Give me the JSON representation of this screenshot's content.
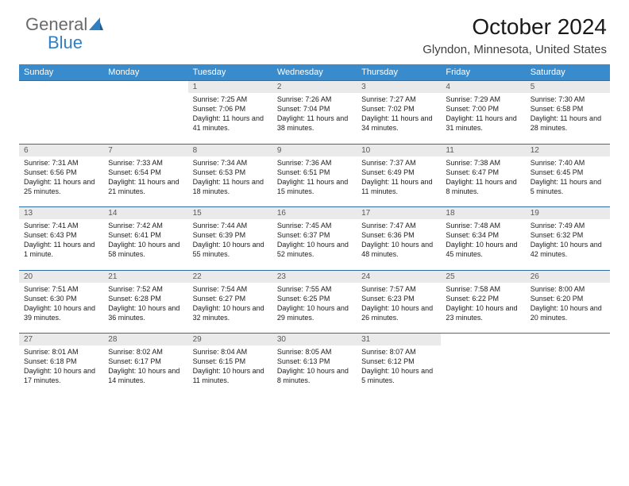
{
  "logo": {
    "text1": "General",
    "text2": "Blue"
  },
  "header": {
    "title": "October 2024",
    "location": "Glyndon, Minnesota, United States"
  },
  "colors": {
    "header_bg": "#3a8bcb",
    "daynum_bg": "#eaeaea",
    "sep": "#2f6ea8",
    "logo_gray": "#6a6a6a",
    "logo_blue": "#2f7fc2"
  },
  "day_names": [
    "Sunday",
    "Monday",
    "Tuesday",
    "Wednesday",
    "Thursday",
    "Friday",
    "Saturday"
  ],
  "weeks": [
    [
      null,
      null,
      {
        "n": "1",
        "sr": "Sunrise: 7:25 AM",
        "ss": "Sunset: 7:06 PM",
        "dl": "Daylight: 11 hours and 41 minutes."
      },
      {
        "n": "2",
        "sr": "Sunrise: 7:26 AM",
        "ss": "Sunset: 7:04 PM",
        "dl": "Daylight: 11 hours and 38 minutes."
      },
      {
        "n": "3",
        "sr": "Sunrise: 7:27 AM",
        "ss": "Sunset: 7:02 PM",
        "dl": "Daylight: 11 hours and 34 minutes."
      },
      {
        "n": "4",
        "sr": "Sunrise: 7:29 AM",
        "ss": "Sunset: 7:00 PM",
        "dl": "Daylight: 11 hours and 31 minutes."
      },
      {
        "n": "5",
        "sr": "Sunrise: 7:30 AM",
        "ss": "Sunset: 6:58 PM",
        "dl": "Daylight: 11 hours and 28 minutes."
      }
    ],
    [
      {
        "n": "6",
        "sr": "Sunrise: 7:31 AM",
        "ss": "Sunset: 6:56 PM",
        "dl": "Daylight: 11 hours and 25 minutes."
      },
      {
        "n": "7",
        "sr": "Sunrise: 7:33 AM",
        "ss": "Sunset: 6:54 PM",
        "dl": "Daylight: 11 hours and 21 minutes."
      },
      {
        "n": "8",
        "sr": "Sunrise: 7:34 AM",
        "ss": "Sunset: 6:53 PM",
        "dl": "Daylight: 11 hours and 18 minutes."
      },
      {
        "n": "9",
        "sr": "Sunrise: 7:36 AM",
        "ss": "Sunset: 6:51 PM",
        "dl": "Daylight: 11 hours and 15 minutes."
      },
      {
        "n": "10",
        "sr": "Sunrise: 7:37 AM",
        "ss": "Sunset: 6:49 PM",
        "dl": "Daylight: 11 hours and 11 minutes."
      },
      {
        "n": "11",
        "sr": "Sunrise: 7:38 AM",
        "ss": "Sunset: 6:47 PM",
        "dl": "Daylight: 11 hours and 8 minutes."
      },
      {
        "n": "12",
        "sr": "Sunrise: 7:40 AM",
        "ss": "Sunset: 6:45 PM",
        "dl": "Daylight: 11 hours and 5 minutes."
      }
    ],
    [
      {
        "n": "13",
        "sr": "Sunrise: 7:41 AM",
        "ss": "Sunset: 6:43 PM",
        "dl": "Daylight: 11 hours and 1 minute."
      },
      {
        "n": "14",
        "sr": "Sunrise: 7:42 AM",
        "ss": "Sunset: 6:41 PM",
        "dl": "Daylight: 10 hours and 58 minutes."
      },
      {
        "n": "15",
        "sr": "Sunrise: 7:44 AM",
        "ss": "Sunset: 6:39 PM",
        "dl": "Daylight: 10 hours and 55 minutes."
      },
      {
        "n": "16",
        "sr": "Sunrise: 7:45 AM",
        "ss": "Sunset: 6:37 PM",
        "dl": "Daylight: 10 hours and 52 minutes."
      },
      {
        "n": "17",
        "sr": "Sunrise: 7:47 AM",
        "ss": "Sunset: 6:36 PM",
        "dl": "Daylight: 10 hours and 48 minutes."
      },
      {
        "n": "18",
        "sr": "Sunrise: 7:48 AM",
        "ss": "Sunset: 6:34 PM",
        "dl": "Daylight: 10 hours and 45 minutes."
      },
      {
        "n": "19",
        "sr": "Sunrise: 7:49 AM",
        "ss": "Sunset: 6:32 PM",
        "dl": "Daylight: 10 hours and 42 minutes."
      }
    ],
    [
      {
        "n": "20",
        "sr": "Sunrise: 7:51 AM",
        "ss": "Sunset: 6:30 PM",
        "dl": "Daylight: 10 hours and 39 minutes."
      },
      {
        "n": "21",
        "sr": "Sunrise: 7:52 AM",
        "ss": "Sunset: 6:28 PM",
        "dl": "Daylight: 10 hours and 36 minutes."
      },
      {
        "n": "22",
        "sr": "Sunrise: 7:54 AM",
        "ss": "Sunset: 6:27 PM",
        "dl": "Daylight: 10 hours and 32 minutes."
      },
      {
        "n": "23",
        "sr": "Sunrise: 7:55 AM",
        "ss": "Sunset: 6:25 PM",
        "dl": "Daylight: 10 hours and 29 minutes."
      },
      {
        "n": "24",
        "sr": "Sunrise: 7:57 AM",
        "ss": "Sunset: 6:23 PM",
        "dl": "Daylight: 10 hours and 26 minutes."
      },
      {
        "n": "25",
        "sr": "Sunrise: 7:58 AM",
        "ss": "Sunset: 6:22 PM",
        "dl": "Daylight: 10 hours and 23 minutes."
      },
      {
        "n": "26",
        "sr": "Sunrise: 8:00 AM",
        "ss": "Sunset: 6:20 PM",
        "dl": "Daylight: 10 hours and 20 minutes."
      }
    ],
    [
      {
        "n": "27",
        "sr": "Sunrise: 8:01 AM",
        "ss": "Sunset: 6:18 PM",
        "dl": "Daylight: 10 hours and 17 minutes."
      },
      {
        "n": "28",
        "sr": "Sunrise: 8:02 AM",
        "ss": "Sunset: 6:17 PM",
        "dl": "Daylight: 10 hours and 14 minutes."
      },
      {
        "n": "29",
        "sr": "Sunrise: 8:04 AM",
        "ss": "Sunset: 6:15 PM",
        "dl": "Daylight: 10 hours and 11 minutes."
      },
      {
        "n": "30",
        "sr": "Sunrise: 8:05 AM",
        "ss": "Sunset: 6:13 PM",
        "dl": "Daylight: 10 hours and 8 minutes."
      },
      {
        "n": "31",
        "sr": "Sunrise: 8:07 AM",
        "ss": "Sunset: 6:12 PM",
        "dl": "Daylight: 10 hours and 5 minutes."
      },
      null,
      null
    ]
  ]
}
